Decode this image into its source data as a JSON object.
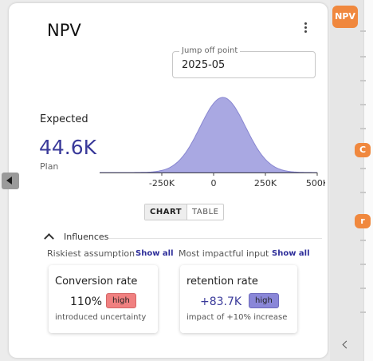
{
  "card": {
    "title": "NPV",
    "jump_off": {
      "label": "Jump off point",
      "value": "2025-05"
    },
    "expected": {
      "label": "Expected",
      "value": "44.6K",
      "sublabel": "Plan"
    },
    "view_tabs": [
      "CHART",
      "TABLE"
    ],
    "active_tab": "CHART",
    "influences": {
      "label": "Influences",
      "riskiest_label": "Riskiest assumption",
      "most_impactful_label": "Most impactful input",
      "show_all": "Show all",
      "cards": [
        {
          "title": "Conversion rate",
          "value": "110%",
          "badge": "high",
          "subtitle": "introduced uncertainty"
        },
        {
          "title": "retention rate",
          "value": "+83.7K",
          "badge": "high",
          "subtitle": "impact of +10% increase"
        }
      ]
    }
  },
  "chart_data": {
    "type": "area",
    "title": "",
    "xlabel": "",
    "ylabel": "",
    "x_ticks": [
      "-250K",
      "0",
      "250K",
      "500K"
    ],
    "x_tick_values": [
      -250000,
      0,
      250000,
      500000
    ],
    "xlim": [
      -550000,
      500000
    ],
    "distribution": {
      "shape": "normal",
      "mean": 44600,
      "std": 110000
    },
    "fill_color": "#a9a8e2",
    "stroke_color": "#8987d1",
    "grid": false
  },
  "sidebar": {
    "chips": [
      {
        "label": "NPV",
        "color": "#f0883e"
      },
      {
        "label": "C",
        "color": "#f0883e"
      },
      {
        "label": "r",
        "color": "#f0883e"
      }
    ]
  },
  "icons": {
    "menu": "kebab-menu-icon",
    "collapse": "chevron-up-icon",
    "expand_panel": "arrow-left-icon",
    "rail_back": "chevron-left-icon"
  }
}
